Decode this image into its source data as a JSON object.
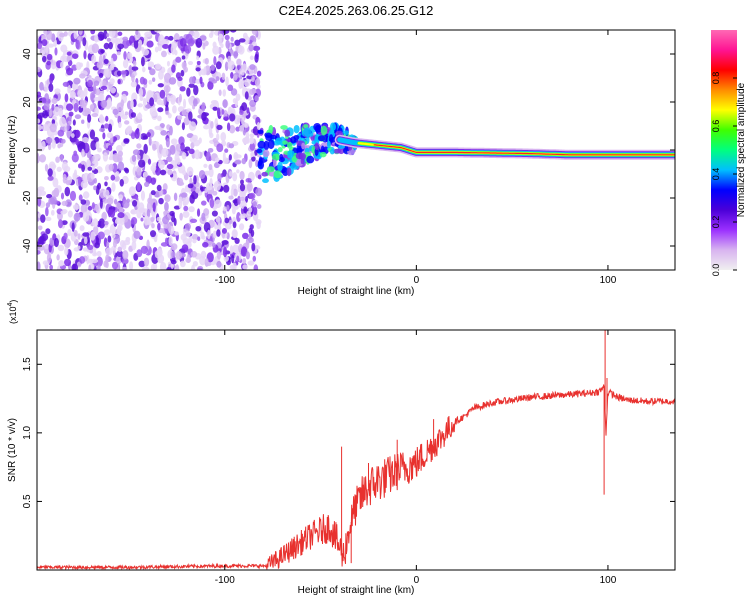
{
  "title": "C2E4.2025.263.06.25.G12",
  "colors": {
    "line": "#e8312e",
    "axis": "#000000"
  },
  "chart_data": [
    {
      "type": "heatmap",
      "id": "spectrogram",
      "xlabel": "Height of straight line (km)",
      "ylabel": "Frequency (Hz)",
      "xlim": [
        -198,
        135
      ],
      "ylim": [
        -50,
        50
      ],
      "x_ticks": [
        -100,
        0,
        100
      ],
      "x_tick_labels": [
        "-100",
        "0",
        "100"
      ],
      "y_ticks": [
        -40,
        -20,
        0,
        20,
        40
      ],
      "y_tick_labels": [
        "-40",
        "-20",
        "0",
        "20",
        "40"
      ],
      "tone_track": [
        [
          -75,
          -2
        ],
        [
          -60,
          2
        ],
        [
          -45,
          5
        ],
        [
          -32,
          3
        ],
        [
          -20,
          2
        ],
        [
          -8,
          1
        ],
        [
          0,
          -1
        ],
        [
          20,
          -1
        ],
        [
          60,
          -1.5
        ],
        [
          80,
          -2
        ],
        [
          100,
          -2
        ],
        [
          135,
          -2
        ]
      ],
      "noise_region_x": [
        -198,
        -82
      ],
      "colorbar": {
        "label": "Normalized spectral amplitude",
        "range": [
          0,
          1
        ],
        "ticks": [
          0.0,
          0.2,
          0.4,
          0.6,
          0.8
        ],
        "tick_labels": [
          "0.0",
          "0.2",
          "0.4",
          "0.6",
          "0.8"
        ],
        "stops": [
          "#f0f0f0",
          "#d8b4f0",
          "#9b30ff",
          "#4b00d8",
          "#0000ff",
          "#00bfff",
          "#00ff7f",
          "#40ff00",
          "#ffff00",
          "#ff8c00",
          "#ff0000",
          "#ff1493",
          "#ff69b4"
        ]
      }
    },
    {
      "type": "line",
      "id": "snr",
      "xlabel": "Height of straight line (km)",
      "ylabel": "SNR (10 * v/v)",
      "y_multiplier": "(x10",
      "y_multiplier_exp": "4",
      "xlim": [
        -198,
        135
      ],
      "ylim": [
        0,
        1.75
      ],
      "x_ticks": [
        -100,
        0,
        100
      ],
      "x_tick_labels": [
        "-100",
        "0",
        "100"
      ],
      "y_ticks": [
        0.5,
        1.0,
        1.5
      ],
      "y_tick_labels": [
        "0.5",
        "1.0",
        "1.5"
      ],
      "x": [
        -198,
        -150,
        -100,
        -78,
        -72,
        -65,
        -55,
        -45,
        -38,
        -35,
        -32,
        -28,
        -25,
        -20,
        -15,
        -10,
        -5,
        0,
        5,
        8,
        12,
        15,
        20,
        25,
        30,
        40,
        50,
        60,
        70,
        80,
        90,
        95,
        97,
        98,
        99,
        100,
        105,
        110,
        120,
        135
      ],
      "y": [
        0.02,
        0.02,
        0.03,
        0.03,
        0.08,
        0.15,
        0.25,
        0.32,
        0.1,
        0.3,
        0.45,
        0.55,
        0.6,
        0.65,
        0.68,
        0.72,
        0.75,
        0.78,
        0.85,
        0.9,
        0.95,
        1.0,
        1.08,
        1.12,
        1.18,
        1.22,
        1.24,
        1.26,
        1.27,
        1.28,
        1.29,
        1.3,
        1.32,
        1.34,
        1.0,
        1.3,
        1.26,
        1.24,
        1.23,
        1.23
      ],
      "spikes": [
        [
          -39,
          0.9
        ],
        [
          -34,
          0.05
        ],
        [
          -25,
          0.78
        ],
        [
          -10,
          0.95
        ],
        [
          9,
          1.1
        ],
        [
          98,
          0.55
        ],
        [
          98.5,
          1.78
        ],
        [
          99.5,
          1.4
        ]
      ]
    }
  ]
}
